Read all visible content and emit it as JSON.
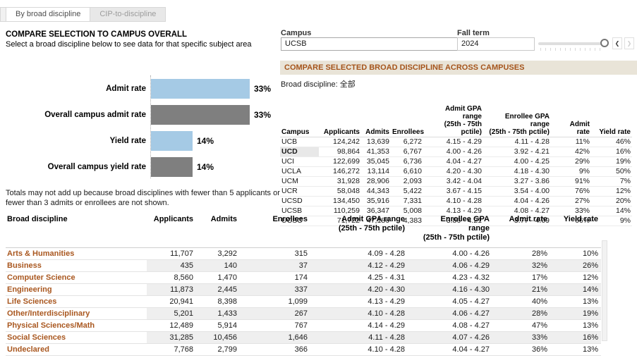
{
  "colors": {
    "bar_blue": "#a5cae5",
    "bar_gray": "#7f7f7f",
    "accent_orange": "#a9571f",
    "section_header_bg": "#e9e4d8"
  },
  "tabs": [
    {
      "label": "By broad discipline",
      "active": true
    },
    {
      "label": "CIP-to-discipline",
      "active": false
    }
  ],
  "left_panel": {
    "title": "COMPARE SELECTION TO CAMPUS OVERALL",
    "subtitle": "Select a broad discipline below to see data for that specific subject area",
    "note": "Totals may not add up because broad disciplines with fewer than 5 applicants or fewer than 3 admits or enrollees are not shown."
  },
  "chart_data": {
    "type": "bar",
    "orientation": "horizontal",
    "categories": [
      "Admit rate",
      "Overall campus admit rate",
      "Yield rate",
      "Overall campus yield rate"
    ],
    "values": [
      33,
      33,
      14,
      14
    ],
    "value_labels": [
      "33%",
      "33%",
      "14%",
      "14%"
    ],
    "bar_colors": [
      "#a5cae5",
      "#7f7f7f",
      "#a5cae5",
      "#7f7f7f"
    ],
    "xlim": [
      0,
      35
    ],
    "grid": false,
    "legend": false
  },
  "filters": {
    "campus": {
      "label": "Campus",
      "value": "UCSB",
      "caret_icon": "▼"
    },
    "fall_term": {
      "label": "Fall term",
      "value": "2024",
      "prev_icon": "❮",
      "next_icon": "❯"
    }
  },
  "campus_comparison": {
    "header": "COMPARE SELECTED BROAD DISCIPLINE ACROSS CAMPUSES",
    "subheader": "Broad discipline: 全部",
    "columns": [
      "Campus",
      "Applicants",
      "Admits",
      "Enrollees",
      "Admit GPA range\n(25th - 75th pctile)",
      "Enrollee GPA range\n(25th - 75th pctile)",
      "Admit rate",
      "Yield rate"
    ],
    "highlighted_row": "UCD",
    "rows": [
      [
        "UCB",
        "124,242",
        "13,639",
        "6,272",
        "4.15 - 4.29",
        "4.11 - 4.28",
        "11%",
        "46%"
      ],
      [
        "UCD",
        "98,864",
        "41,353",
        "6,767",
        "4.00 - 4.26",
        "3.92 - 4.21",
        "42%",
        "16%"
      ],
      [
        "UCI",
        "122,699",
        "35,045",
        "6,736",
        "4.04 - 4.27",
        "4.00 - 4.25",
        "29%",
        "19%"
      ],
      [
        "UCLA",
        "146,272",
        "13,114",
        "6,610",
        "4.20 - 4.30",
        "4.18 - 4.30",
        "9%",
        "50%"
      ],
      [
        "UCM",
        "31,928",
        "28,906",
        "2,093",
        "3.42 - 4.04",
        "3.27 - 3.86",
        "91%",
        "7%"
      ],
      [
        "UCR",
        "58,048",
        "44,343",
        "5,422",
        "3.67 - 4.15",
        "3.54 - 4.00",
        "76%",
        "12%"
      ],
      [
        "UCSD",
        "134,450",
        "35,916",
        "7,331",
        "4.10 - 4.28",
        "4.04 - 4.26",
        "27%",
        "20%"
      ],
      [
        "UCSB",
        "110,259",
        "36,347",
        "5,008",
        "4.13 - 4.29",
        "4.08 - 4.27",
        "33%",
        "14%"
      ],
      [
        "UCSC",
        "71,722",
        "47,186",
        "4,383",
        "3.86 - 4.21",
        "3.77 - 4.09",
        "66%",
        "9%"
      ]
    ]
  },
  "discipline_table": {
    "columns": [
      "Broad discipline",
      "Applicants",
      "Admits",
      "Enrollees",
      "Admit GPA range\n(25th - 75th pctile)",
      "Enrollee GPA range\n(25th - 75th pctile)",
      "Admit rate",
      "Yield rate"
    ],
    "rows": [
      [
        "Arts & Humanities",
        "11,707",
        "3,292",
        "315",
        "4.09 - 4.28",
        "4.00 - 4.26",
        "28%",
        "10%"
      ],
      [
        "Business",
        "435",
        "140",
        "37",
        "4.12 - 4.29",
        "4.06 - 4.29",
        "32%",
        "26%"
      ],
      [
        "Computer Science",
        "8,560",
        "1,470",
        "174",
        "4.25 - 4.31",
        "4.23 - 4.32",
        "17%",
        "12%"
      ],
      [
        "Engineering",
        "11,873",
        "2,445",
        "337",
        "4.20 - 4.30",
        "4.16 - 4.30",
        "21%",
        "14%"
      ],
      [
        "Life Sciences",
        "20,941",
        "8,398",
        "1,099",
        "4.13 - 4.29",
        "4.05 - 4.27",
        "40%",
        "13%"
      ],
      [
        "Other/Interdisciplinary",
        "5,201",
        "1,433",
        "267",
        "4.10 - 4.28",
        "4.06 - 4.27",
        "28%",
        "19%"
      ],
      [
        "Physical Sciences/Math",
        "12,489",
        "5,914",
        "767",
        "4.14 - 4.29",
        "4.08 - 4.27",
        "47%",
        "13%"
      ],
      [
        "Social Sciences",
        "31,285",
        "10,456",
        "1,646",
        "4.11 - 4.28",
        "4.07 - 4.26",
        "33%",
        "16%"
      ],
      [
        "Undeclared",
        "7,768",
        "2,799",
        "366",
        "4.10 - 4.28",
        "4.04 - 4.27",
        "36%",
        "13%"
      ]
    ]
  }
}
